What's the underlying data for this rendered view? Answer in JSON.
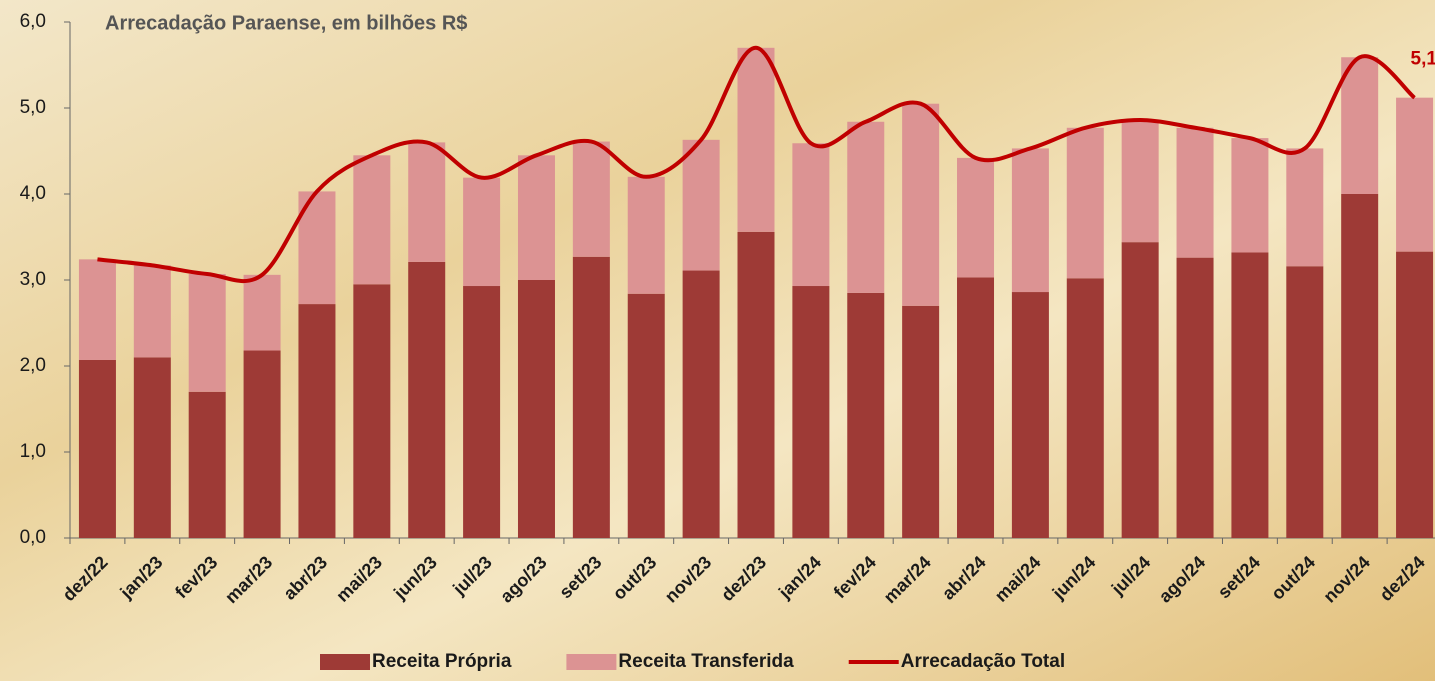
{
  "chart_data": {
    "type": "stacked-bar-line",
    "title": "Arrecadação Paraense, em bilhões R$",
    "categories": [
      "dez/22",
      "jan/23",
      "fev/23",
      "mar/23",
      "abr/23",
      "mai/23",
      "jun/23",
      "jul/23",
      "ago/23",
      "set/23",
      "out/23",
      "nov/23",
      "dez/23",
      "jan/24",
      "fev/24",
      "mar/24",
      "abr/24",
      "mai/24",
      "jun/24",
      "jul/24",
      "ago/24",
      "set/24",
      "out/24",
      "nov/24",
      "dez/24"
    ],
    "series": [
      {
        "name": "Receita Própria",
        "type": "bar",
        "color": "#9e3a36",
        "values": [
          2.07,
          2.1,
          1.7,
          2.18,
          2.72,
          2.95,
          3.21,
          2.93,
          3.0,
          3.27,
          2.84,
          3.11,
          3.56,
          2.93,
          2.85,
          2.7,
          3.03,
          2.86,
          3.02,
          3.44,
          3.26,
          3.32,
          3.16,
          4.0,
          3.33
        ]
      },
      {
        "name": "Receita Transferida",
        "type": "bar",
        "color": "#dc9393",
        "values": [
          1.17,
          1.07,
          1.37,
          0.88,
          1.31,
          1.5,
          1.39,
          1.26,
          1.45,
          1.34,
          1.36,
          1.52,
          2.14,
          1.66,
          1.99,
          2.35,
          1.39,
          1.67,
          1.75,
          1.42,
          1.51,
          1.33,
          1.37,
          1.59,
          1.79
        ]
      },
      {
        "name": "Arrecadação Total",
        "type": "line",
        "color": "#c00000",
        "values": [
          3.24,
          3.17,
          3.07,
          3.06,
          4.03,
          4.45,
          4.6,
          4.19,
          4.45,
          4.61,
          4.2,
          4.63,
          5.7,
          4.59,
          4.84,
          5.05,
          4.42,
          4.53,
          4.77,
          4.86,
          4.77,
          4.65,
          4.53,
          5.59,
          5.12
        ],
        "value_labels": [
          null,
          null,
          null,
          null,
          null,
          null,
          null,
          null,
          null,
          null,
          null,
          null,
          null,
          null,
          null,
          null,
          null,
          null,
          null,
          null,
          null,
          null,
          null,
          null,
          "5,1"
        ]
      }
    ],
    "ylim": [
      0,
      6
    ],
    "yticks": [
      {
        "value": 0,
        "label": "0,0"
      },
      {
        "value": 1,
        "label": "1,0"
      },
      {
        "value": 2,
        "label": "2,0"
      },
      {
        "value": 3,
        "label": "3,0"
      },
      {
        "value": 4,
        "label": "4,0"
      },
      {
        "value": 5,
        "label": "5,0"
      },
      {
        "value": 6,
        "label": "6,0"
      }
    ],
    "grid": false,
    "legend": "bottom"
  }
}
